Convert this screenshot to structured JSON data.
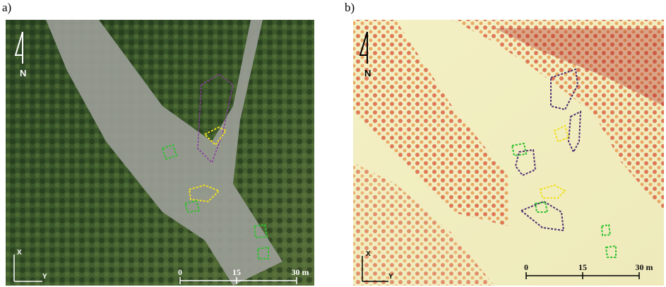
{
  "panels": [
    {
      "label": "a)",
      "north": "N",
      "axis_x": "X",
      "axis_y": "Y",
      "scale": [
        "0",
        "15",
        "30 m"
      ]
    },
    {
      "label": "b)",
      "north": "N",
      "axis_x": "X",
      "axis_y": "Y",
      "scale": [
        "0",
        "15",
        "30 m"
      ]
    }
  ]
}
